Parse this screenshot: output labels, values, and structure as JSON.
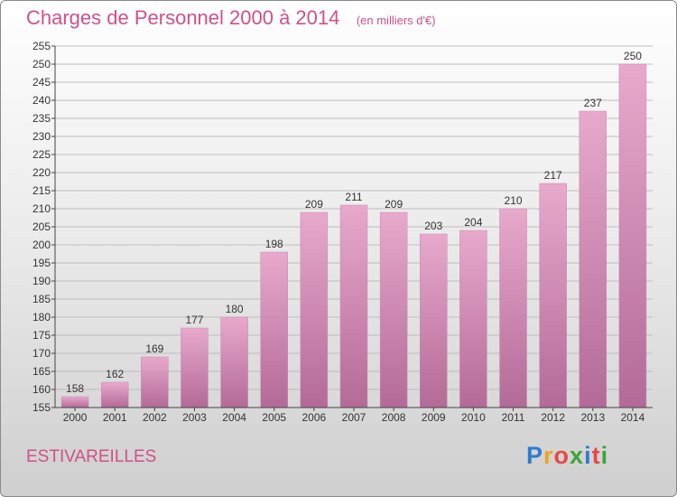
{
  "chart_data": {
    "type": "bar",
    "title": "Charges de Personnel 2000 à 2014",
    "subtitle": "(en milliers d'€)",
    "categories": [
      "2000",
      "2001",
      "2002",
      "2003",
      "2004",
      "2005",
      "2006",
      "2007",
      "2008",
      "2009",
      "2010",
      "2011",
      "2012",
      "2013",
      "2014"
    ],
    "values": [
      158,
      162,
      169,
      177,
      180,
      198,
      209,
      211,
      209,
      203,
      204,
      210,
      217,
      237,
      250
    ],
    "ylim": [
      155,
      255
    ],
    "yticks": [
      155,
      160,
      165,
      170,
      175,
      180,
      185,
      190,
      195,
      200,
      205,
      210,
      215,
      220,
      225,
      230,
      235,
      240,
      245,
      250,
      255
    ],
    "grid": true,
    "legend": "none",
    "bar_color": "#d98ab5"
  },
  "commune": "ESTIVAREILLES",
  "logo": {
    "letters": [
      "P",
      "r",
      "o",
      "x",
      "i",
      "t",
      "i"
    ],
    "colors": [
      "#2e7bd0",
      "#f0a21c",
      "#e54848",
      "#3aa53a",
      "#2e7bd0",
      "#e54848",
      "#3aa53a"
    ]
  },
  "colors": {
    "accent": "#d0508a",
    "bar_top": "#e8a9cc",
    "bar_bottom": "#b36a98"
  }
}
